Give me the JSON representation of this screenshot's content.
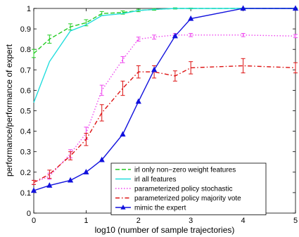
{
  "chart_data": {
    "type": "line",
    "xlabel": "log10 (number of sample trajectories)",
    "ylabel": "performance/performance of expert",
    "xlim": [
      0,
      5
    ],
    "ylim": [
      0,
      1
    ],
    "x_ticks": [
      "0",
      "1",
      "2",
      "3",
      "4",
      "5"
    ],
    "y_ticks": [
      "0",
      "0.1",
      "0.2",
      "0.3",
      "0.4",
      "0.5",
      "0.6",
      "0.7",
      "0.8",
      "0.9",
      "1"
    ],
    "grid": false,
    "legend_position": "bottom-right",
    "series": [
      {
        "name": "irl only non−zero weight features",
        "color": "#22cc22",
        "style": "dashed",
        "marker": "errorbar",
        "x": [
          0,
          0.3,
          0.7,
          1,
          1.3,
          1.7,
          2,
          2.3,
          2.7,
          3,
          4,
          5
        ],
        "y": [
          0.78,
          0.85,
          0.91,
          0.93,
          0.975,
          0.98,
          0.99,
          0.995,
          1.0,
          1.0,
          1.0,
          1.0
        ],
        "err": [
          0.02,
          0.02,
          0.015,
          0.015,
          0.01,
          0.008,
          0.006,
          0.004,
          0.003,
          0.002,
          0.002,
          0.002
        ]
      },
      {
        "name": "irl all features",
        "color": "#22dddd",
        "style": "solid",
        "marker": "none",
        "x": [
          0,
          0.3,
          0.7,
          1,
          1.3,
          1.7,
          2,
          2.3,
          2.7,
          3,
          4,
          5
        ],
        "y": [
          0.54,
          0.74,
          0.89,
          0.92,
          0.965,
          0.975,
          0.99,
          0.995,
          1.0,
          1.0,
          1.0,
          1.0
        ],
        "err": [
          0,
          0,
          0,
          0,
          0,
          0,
          0,
          0,
          0,
          0,
          0,
          0
        ]
      },
      {
        "name": "parameterized policy stochastic",
        "color": "#ee44ee",
        "style": "dotted",
        "marker": "errorbar",
        "x": [
          0,
          0.3,
          0.7,
          1,
          1.3,
          1.7,
          2,
          2.3,
          2.7,
          3,
          4,
          5
        ],
        "y": [
          0.15,
          0.18,
          0.29,
          0.39,
          0.6,
          0.75,
          0.85,
          0.86,
          0.87,
          0.87,
          0.87,
          0.865
        ],
        "err": [
          0.01,
          0.015,
          0.02,
          0.03,
          0.025,
          0.015,
          0.01,
          0.01,
          0.008,
          0.008,
          0.008,
          0.008
        ]
      },
      {
        "name": "parameterized policy majority vote",
        "color": "#dd1111",
        "style": "dashdot",
        "marker": "errorbar",
        "x": [
          0,
          0.3,
          0.7,
          1,
          1.3,
          1.7,
          2,
          2.3,
          2.7,
          3,
          4,
          5
        ],
        "y": [
          0.15,
          0.19,
          0.28,
          0.36,
          0.49,
          0.61,
          0.69,
          0.69,
          0.67,
          0.71,
          0.72,
          0.71
        ],
        "err": [
          0.01,
          0.02,
          0.02,
          0.03,
          0.04,
          0.035,
          0.03,
          0.03,
          0.025,
          0.03,
          0.035,
          0.025
        ]
      },
      {
        "name": "mimic the expert",
        "color": "#1111dd",
        "style": "solid",
        "marker": "triangle",
        "x": [
          0,
          0.3,
          0.7,
          1,
          1.3,
          1.7,
          2,
          2.3,
          2.7,
          3,
          4,
          5
        ],
        "y": [
          0.11,
          0.135,
          0.16,
          0.2,
          0.26,
          0.385,
          0.545,
          0.7,
          0.865,
          0.95,
          1.0,
          1.0
        ],
        "err": [
          0,
          0,
          0,
          0,
          0,
          0,
          0,
          0,
          0,
          0,
          0,
          0
        ]
      }
    ]
  }
}
